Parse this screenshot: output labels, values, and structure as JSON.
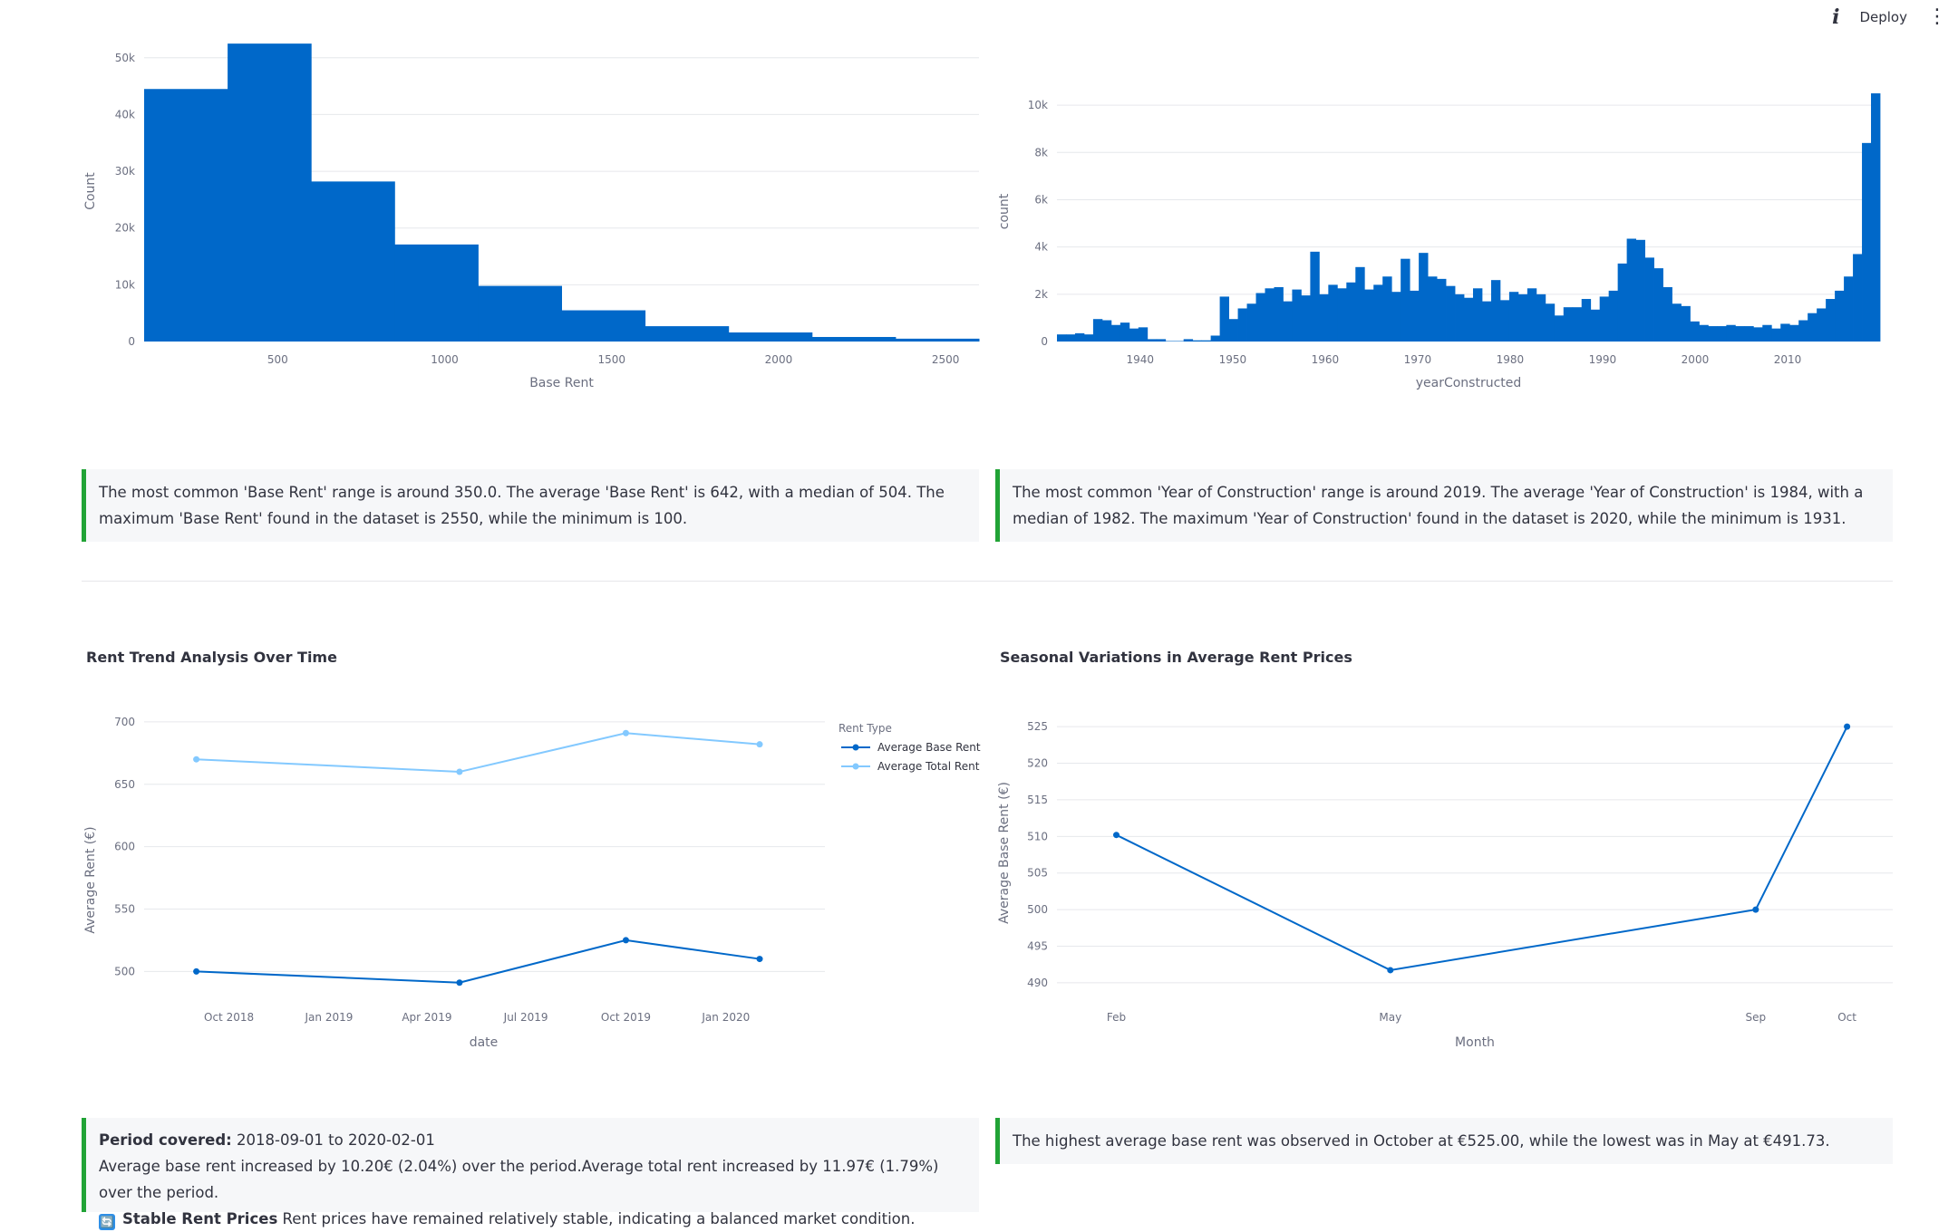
{
  "toolbar": {
    "info_icon": "i",
    "deploy_label": "Deploy",
    "menu_icon": "⋮"
  },
  "colors": {
    "dark_blue": "#0068c9",
    "light_blue": "#83c9ff",
    "callout_border": "#21a336"
  },
  "charts": {
    "base_rent_hist": {
      "type": "bar",
      "xlabel": "Base Rent",
      "ylabel": "Count",
      "x_ticks": [
        500,
        1000,
        1500,
        2000,
        2500
      ],
      "y_ticks": [
        0,
        10000,
        20000,
        30000,
        40000,
        50000
      ],
      "y_tick_labels": [
        "0",
        "10k",
        "20k",
        "30k",
        "40k",
        "50k"
      ],
      "xlim": [
        100,
        2600
      ],
      "ylim": [
        0,
        53000
      ],
      "bin_edges": [
        100,
        350,
        600,
        850,
        1100,
        1350,
        1600,
        1850,
        2100,
        2350,
        2600
      ],
      "values": [
        44500,
        52500,
        28200,
        17100,
        9800,
        5500,
        2700,
        1600,
        800,
        500
      ]
    },
    "year_hist": {
      "type": "bar",
      "xlabel": "yearConstructed",
      "ylabel": "count",
      "x_ticks": [
        1940,
        1950,
        1960,
        1970,
        1980,
        1990,
        2000,
        2010
      ],
      "y_ticks": [
        0,
        2000,
        4000,
        6000,
        8000,
        10000
      ],
      "y_tick_labels": [
        "0",
        "2k",
        "4k",
        "6k",
        "8k",
        "10k"
      ],
      "xlim": [
        1931,
        2020
      ],
      "ylim": [
        0,
        11000
      ],
      "start_year": 1931,
      "values": [
        300,
        300,
        350,
        300,
        950,
        900,
        700,
        800,
        550,
        600,
        100,
        100,
        20,
        20,
        100,
        50,
        50,
        250,
        1900,
        950,
        1400,
        1600,
        2050,
        2250,
        2300,
        1700,
        2200,
        1950,
        3800,
        2000,
        2400,
        2250,
        2500,
        3150,
        2200,
        2400,
        2750,
        2100,
        3500,
        2150,
        3750,
        2750,
        2650,
        2350,
        2000,
        1850,
        2250,
        1700,
        2600,
        1750,
        2100,
        2000,
        2250,
        2000,
        1600,
        1100,
        1450,
        1450,
        1800,
        1350,
        1900,
        2150,
        3300,
        4350,
        4300,
        3550,
        3100,
        2300,
        1600,
        1500,
        850,
        700,
        650,
        650,
        700,
        650,
        650,
        600,
        700,
        550,
        750,
        700,
        900,
        1200,
        1400,
        1800,
        2150,
        2750,
        3700,
        8400,
        10500
      ]
    },
    "rent_trend": {
      "type": "line",
      "title": "Rent Trend Analysis Over Time",
      "xlabel": "date",
      "ylabel": "Average Rent (€)",
      "x_tick_labels": [
        "Oct 2018",
        "Jan 2019",
        "Apr 2019",
        "Jul 2019",
        "Oct 2019",
        "Jan 2020"
      ],
      "y_ticks": [
        500,
        550,
        600,
        650,
        700
      ],
      "ylim": [
        485,
        705
      ],
      "legend_title": "Rent Type",
      "series": [
        {
          "name": "Average Base Rent",
          "x": [
            "2018-09-01",
            "2019-05-01",
            "2019-10-01",
            "2020-02-01"
          ],
          "values": [
            500,
            491,
            525,
            510
          ]
        },
        {
          "name": "Average Total Rent",
          "x": [
            "2018-09-01",
            "2019-05-01",
            "2019-10-01",
            "2020-02-01"
          ],
          "values": [
            670,
            660,
            691,
            682
          ]
        }
      ]
    },
    "seasonal": {
      "type": "line",
      "title": "Seasonal Variations in Average Rent Prices",
      "xlabel": "Month",
      "ylabel": "Average Base Rent (€)",
      "x": [
        2,
        5,
        9,
        10
      ],
      "x_tick_labels": [
        "Feb",
        "May",
        "Sep",
        "Oct"
      ],
      "y_ticks": [
        490,
        495,
        500,
        505,
        510,
        515,
        520,
        525
      ],
      "ylim": [
        489,
        526.5
      ],
      "values": [
        510.2,
        491.73,
        500,
        525
      ]
    }
  },
  "callouts": {
    "base_rent": "The most common 'Base Rent' range is around 350.0. The average 'Base Rent' is 642, with a median of 504. The maximum 'Base Rent' found in the dataset is 2550, while the minimum is 100.",
    "year": "The most common 'Year of Construction' range is around 2019. The average 'Year of Construction' is 1984, with a median of 1982. The maximum 'Year of Construction' found in the dataset is 2020, while the minimum is 1931.",
    "period_label": "Period covered:",
    "period_value": " 2018-09-01 to 2020-02-01",
    "trend_text": "Average base rent increased by 10.20€ (2.04%) over the period.Average total rent increased by 11.97€ (1.79%) over the period.",
    "stable_icon": "🔄",
    "stable_label": "Stable Rent Prices",
    "stable_text": " Rent prices have remained relatively stable, indicating a balanced market condition.",
    "seasonal": "The highest average base rent was observed in October at €525.00, while the lowest was in May at €491.73."
  }
}
